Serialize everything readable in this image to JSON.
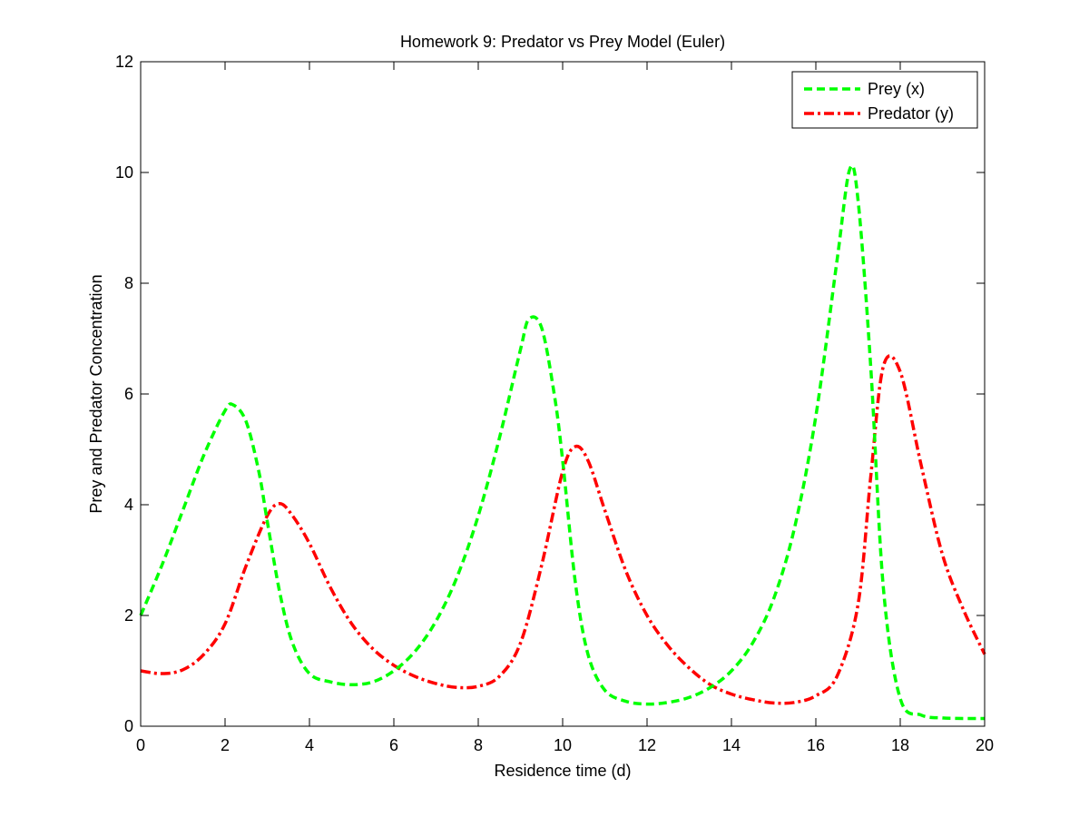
{
  "chart_data": {
    "type": "line",
    "title": "Homework 9: Predator vs Prey Model (Euler)",
    "xlabel": "Residence time (d)",
    "ylabel": "Prey and Predator Concentration",
    "xlim": [
      0,
      20
    ],
    "ylim": [
      0,
      12
    ],
    "xticks": [
      0,
      2,
      4,
      6,
      8,
      10,
      12,
      14,
      16,
      18,
      20
    ],
    "yticks": [
      0,
      2,
      4,
      6,
      8,
      10,
      12
    ],
    "grid": false,
    "legend": {
      "position": "top-right"
    },
    "series": [
      {
        "name": "Prey (x)",
        "color": "#00ff00",
        "style": "dashed",
        "x": [
          0,
          0.5,
          1,
          1.5,
          2,
          2.2,
          2.5,
          2.8,
          3,
          3.3,
          3.6,
          4,
          4.5,
          5,
          5.5,
          6,
          6.5,
          7,
          7.5,
          8,
          8.5,
          9,
          9.2,
          9.5,
          9.8,
          10,
          10.3,
          10.6,
          11,
          11.5,
          12,
          12.5,
          13,
          13.5,
          14,
          14.5,
          15,
          15.5,
          16,
          16.5,
          16.8,
          17,
          17.3,
          17.6,
          18,
          18.5,
          19,
          19.5,
          20
        ],
        "y": [
          2.0,
          2.9,
          3.9,
          4.9,
          5.7,
          5.8,
          5.5,
          4.6,
          3.7,
          2.4,
          1.5,
          0.95,
          0.8,
          0.75,
          0.8,
          1.0,
          1.35,
          1.9,
          2.7,
          3.8,
          5.2,
          6.8,
          7.35,
          7.2,
          6.0,
          4.8,
          2.6,
          1.3,
          0.65,
          0.45,
          0.4,
          0.43,
          0.52,
          0.7,
          1.0,
          1.5,
          2.3,
          3.6,
          5.6,
          8.4,
          10.05,
          9.5,
          6.5,
          2.5,
          0.5,
          0.2,
          0.15,
          0.14,
          0.14
        ]
      },
      {
        "name": "Predator (y)",
        "color": "#ff0000",
        "style": "dashdot",
        "x": [
          0,
          0.5,
          1,
          1.5,
          2,
          2.5,
          3,
          3.3,
          3.6,
          4,
          4.5,
          5,
          5.5,
          6,
          6.5,
          7,
          7.5,
          8,
          8.5,
          9,
          9.5,
          10,
          10.3,
          10.6,
          11,
          11.5,
          12,
          12.5,
          13,
          13.5,
          14,
          14.5,
          15,
          15.5,
          16,
          16.5,
          17,
          17.3,
          17.6,
          18,
          18.5,
          19,
          19.5,
          20
        ],
        "y": [
          1.0,
          0.95,
          1.02,
          1.3,
          1.85,
          2.9,
          3.8,
          4.02,
          3.8,
          3.3,
          2.5,
          1.85,
          1.4,
          1.1,
          0.9,
          0.77,
          0.7,
          0.72,
          0.9,
          1.5,
          2.9,
          4.6,
          5.05,
          4.8,
          3.9,
          2.8,
          2.0,
          1.45,
          1.05,
          0.75,
          0.58,
          0.48,
          0.42,
          0.43,
          0.55,
          0.9,
          2.2,
          4.5,
          6.5,
          6.4,
          4.7,
          3.1,
          2.1,
          1.3
        ]
      }
    ]
  }
}
